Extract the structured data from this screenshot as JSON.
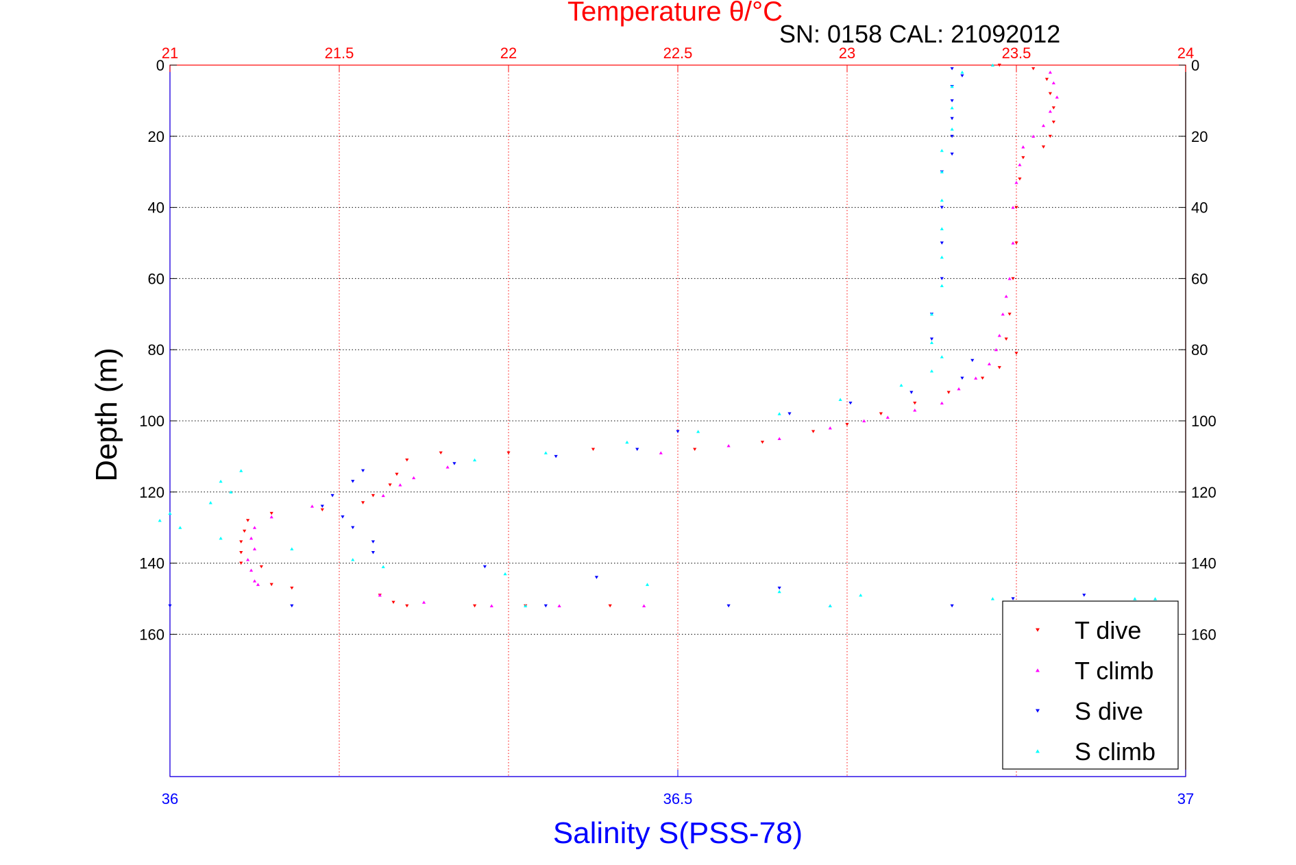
{
  "chart_data": {
    "type": "scatter",
    "title": "Temperature θ/°C",
    "subtitle": "SN: 0158  CAL: 21092012",
    "xlabel_top": "Temperature θ/°C",
    "xlabel_bottom": "Salinity S(PSS-78)",
    "ylabel": "Depth (m)",
    "temperature_axis": {
      "range": [
        21,
        24
      ],
      "ticks": [
        "21",
        "21.5",
        "22",
        "22.5",
        "23",
        "23.5",
        "24"
      ],
      "color": "#ff0000"
    },
    "salinity_axis": {
      "range": [
        36,
        37
      ],
      "ticks": [
        "36",
        "36.5",
        "37"
      ],
      "color": "#0000ff"
    },
    "depth_axis": {
      "range": [
        0,
        200
      ],
      "reversed": true,
      "ticks": [
        "0",
        "20",
        "40",
        "60",
        "80",
        "100",
        "120",
        "140",
        "160"
      ]
    },
    "grid": true,
    "legend_position": "bottom-right",
    "series": [
      {
        "name": "T dive",
        "color": "#ff0000",
        "marker": "triangle-down",
        "axis": "temperature",
        "points": [
          [
            23.45,
            0
          ],
          [
            23.55,
            1
          ],
          [
            23.59,
            4
          ],
          [
            23.6,
            8
          ],
          [
            23.61,
            12
          ],
          [
            23.61,
            16
          ],
          [
            23.6,
            20
          ],
          [
            23.58,
            23
          ],
          [
            23.52,
            26
          ],
          [
            23.51,
            32
          ],
          [
            23.5,
            40
          ],
          [
            23.5,
            50
          ],
          [
            23.49,
            60
          ],
          [
            23.48,
            70
          ],
          [
            23.47,
            77
          ],
          [
            23.5,
            81
          ],
          [
            23.45,
            85
          ],
          [
            23.4,
            88
          ],
          [
            23.3,
            92
          ],
          [
            23.2,
            95
          ],
          [
            23.1,
            98
          ],
          [
            23.0,
            101
          ],
          [
            22.9,
            103
          ],
          [
            22.75,
            106
          ],
          [
            22.55,
            108
          ],
          [
            22.25,
            108
          ],
          [
            22.0,
            109
          ],
          [
            21.8,
            109
          ],
          [
            21.7,
            111
          ],
          [
            21.67,
            115
          ],
          [
            21.65,
            118
          ],
          [
            21.6,
            121
          ],
          [
            21.57,
            123
          ],
          [
            21.45,
            125
          ],
          [
            21.3,
            126
          ],
          [
            21.23,
            128
          ],
          [
            21.22,
            131
          ],
          [
            21.21,
            134
          ],
          [
            21.21,
            137
          ],
          [
            21.21,
            140
          ],
          [
            21.27,
            141
          ],
          [
            21.3,
            146
          ],
          [
            21.36,
            147
          ],
          [
            21.62,
            149
          ],
          [
            21.66,
            151
          ],
          [
            21.7,
            152
          ],
          [
            21.9,
            152
          ],
          [
            22.05,
            152
          ],
          [
            22.3,
            152
          ]
        ]
      },
      {
        "name": "T climb",
        "color": "#ff00ff",
        "marker": "triangle-up",
        "axis": "temperature",
        "points": [
          [
            23.6,
            2
          ],
          [
            23.61,
            5
          ],
          [
            23.62,
            9
          ],
          [
            23.6,
            13
          ],
          [
            23.58,
            17
          ],
          [
            23.55,
            20
          ],
          [
            23.52,
            23
          ],
          [
            23.51,
            28
          ],
          [
            23.5,
            33
          ],
          [
            23.49,
            40
          ],
          [
            23.49,
            50
          ],
          [
            23.48,
            60
          ],
          [
            23.47,
            65
          ],
          [
            23.46,
            70
          ],
          [
            23.45,
            76
          ],
          [
            23.44,
            80
          ],
          [
            23.42,
            84
          ],
          [
            23.38,
            88
          ],
          [
            23.33,
            91
          ],
          [
            23.28,
            95
          ],
          [
            23.2,
            97
          ],
          [
            23.12,
            99
          ],
          [
            23.05,
            100
          ],
          [
            22.95,
            102
          ],
          [
            22.8,
            105
          ],
          [
            22.65,
            107
          ],
          [
            22.45,
            109
          ],
          [
            21.82,
            113
          ],
          [
            21.72,
            116
          ],
          [
            21.68,
            118
          ],
          [
            21.63,
            121
          ],
          [
            21.42,
            124
          ],
          [
            21.3,
            127
          ],
          [
            21.25,
            130
          ],
          [
            21.24,
            133
          ],
          [
            21.25,
            136
          ],
          [
            21.23,
            139
          ],
          [
            21.24,
            142
          ],
          [
            21.25,
            145
          ],
          [
            21.26,
            146
          ],
          [
            21.62,
            149
          ],
          [
            21.75,
            151
          ],
          [
            21.95,
            152
          ],
          [
            22.15,
            152
          ],
          [
            22.4,
            152
          ],
          [
            22.95,
            152
          ],
          [
            23.55,
            151
          ]
        ]
      },
      {
        "name": "S dive",
        "color": "#0000ff",
        "marker": "triangle-down",
        "axis": "salinity",
        "points": [
          [
            36.77,
            1
          ],
          [
            36.78,
            3
          ],
          [
            36.77,
            6
          ],
          [
            36.77,
            10
          ],
          [
            36.77,
            15
          ],
          [
            36.77,
            20
          ],
          [
            36.77,
            25
          ],
          [
            36.76,
            30
          ],
          [
            36.76,
            40
          ],
          [
            36.76,
            50
          ],
          [
            36.76,
            60
          ],
          [
            36.75,
            70
          ],
          [
            36.75,
            77
          ],
          [
            36.79,
            83
          ],
          [
            36.78,
            88
          ],
          [
            36.73,
            92
          ],
          [
            36.67,
            95
          ],
          [
            36.61,
            98
          ],
          [
            36.5,
            103
          ],
          [
            36.46,
            108
          ],
          [
            36.38,
            110
          ],
          [
            36.28,
            112
          ],
          [
            36.19,
            114
          ],
          [
            36.18,
            117
          ],
          [
            36.16,
            121
          ],
          [
            36.15,
            124
          ],
          [
            36.17,
            127
          ],
          [
            36.18,
            130
          ],
          [
            36.2,
            134
          ],
          [
            36.2,
            137
          ],
          [
            36.31,
            141
          ],
          [
            36.42,
            144
          ],
          [
            36.6,
            147
          ],
          [
            36.83,
            150
          ],
          [
            36.9,
            149
          ],
          [
            36.77,
            152
          ],
          [
            36.55,
            152
          ],
          [
            36.37,
            152
          ],
          [
            36.12,
            152
          ],
          [
            36.0,
            152
          ]
        ]
      },
      {
        "name": "S climb",
        "color": "#00ffff",
        "marker": "triangle-up",
        "axis": "salinity",
        "points": [
          [
            36.81,
            0
          ],
          [
            36.78,
            2
          ],
          [
            36.77,
            6
          ],
          [
            36.77,
            12
          ],
          [
            36.77,
            18
          ],
          [
            36.76,
            24
          ],
          [
            36.76,
            30
          ],
          [
            36.76,
            38
          ],
          [
            36.76,
            46
          ],
          [
            36.76,
            54
          ],
          [
            36.76,
            62
          ],
          [
            36.75,
            70
          ],
          [
            36.75,
            78
          ],
          [
            36.76,
            82
          ],
          [
            36.75,
            86
          ],
          [
            36.72,
            90
          ],
          [
            36.66,
            94
          ],
          [
            36.6,
            98
          ],
          [
            36.52,
            103
          ],
          [
            36.45,
            106
          ],
          [
            36.37,
            109
          ],
          [
            36.3,
            111
          ],
          [
            36.07,
            114
          ],
          [
            36.05,
            117
          ],
          [
            36.06,
            120
          ],
          [
            36.04,
            123
          ],
          [
            36.0,
            126
          ],
          [
            35.99,
            128
          ],
          [
            36.01,
            130
          ],
          [
            36.05,
            133
          ],
          [
            36.12,
            136
          ],
          [
            36.18,
            139
          ],
          [
            36.21,
            141
          ],
          [
            36.33,
            143
          ],
          [
            36.47,
            146
          ],
          [
            36.6,
            148
          ],
          [
            36.68,
            149
          ],
          [
            36.81,
            150
          ],
          [
            36.95,
            150
          ],
          [
            36.97,
            150
          ],
          [
            36.65,
            152
          ],
          [
            36.35,
            152
          ]
        ]
      }
    ]
  }
}
